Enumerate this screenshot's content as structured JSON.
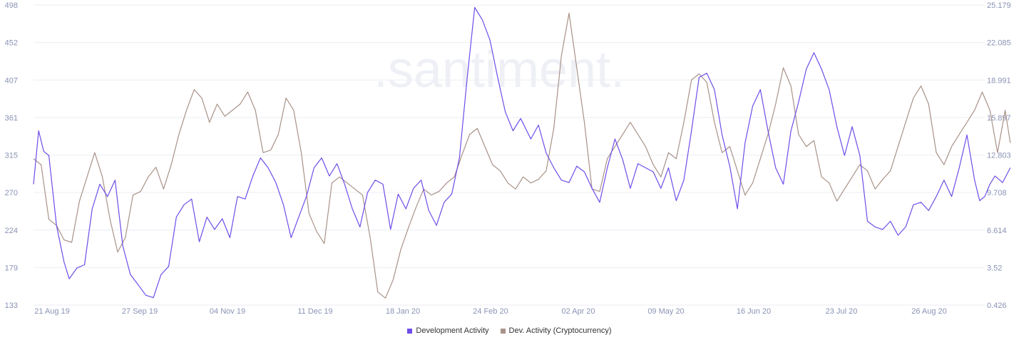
{
  "chart_data": {
    "type": "line",
    "x_ticks": [
      "21 Aug 19",
      "27 Sep 19",
      "04 Nov 19",
      "11 Dec 19",
      "18 Jan 20",
      "24 Feb 20",
      "02 Apr 20",
      "09 May 20",
      "16 Jun 20",
      "23 Jul 20",
      "26 Aug 20"
    ],
    "x_range": [
      "2019-08-19",
      "2020-08-26"
    ],
    "y_left_ticks": [
      "133",
      "179",
      "224",
      "270",
      "315",
      "361",
      "407",
      "452",
      "498"
    ],
    "y_left_range": [
      133,
      498
    ],
    "y_right_ticks": [
      "0.426",
      "3.52",
      "6.614",
      "9.708",
      "12.803",
      "15.897",
      "18.991",
      "22.085",
      "25.179"
    ],
    "y_right_range": [
      0.426,
      25.179
    ],
    "watermark": ".santiment.",
    "grid": "horizontal",
    "legend_position": "bottom-center",
    "series": [
      {
        "name": "Development Activity",
        "axis": "left",
        "color": "#6f4de8",
        "points": [
          [
            "2019-08-19",
            280
          ],
          [
            "2019-08-21",
            345
          ],
          [
            "2019-08-23",
            320
          ],
          [
            "2019-08-25",
            315
          ],
          [
            "2019-08-28",
            230
          ],
          [
            "2019-08-31",
            185
          ],
          [
            "2019-09-02",
            165
          ],
          [
            "2019-09-05",
            178
          ],
          [
            "2019-09-08",
            182
          ],
          [
            "2019-09-11",
            250
          ],
          [
            "2019-09-14",
            280
          ],
          [
            "2019-09-17",
            265
          ],
          [
            "2019-09-20",
            285
          ],
          [
            "2019-09-23",
            205
          ],
          [
            "2019-09-26",
            170
          ],
          [
            "2019-09-29",
            158
          ],
          [
            "2019-10-02",
            145
          ],
          [
            "2019-10-05",
            142
          ],
          [
            "2019-10-08",
            170
          ],
          [
            "2019-10-11",
            180
          ],
          [
            "2019-10-14",
            240
          ],
          [
            "2019-10-17",
            255
          ],
          [
            "2019-10-20",
            262
          ],
          [
            "2019-10-23",
            210
          ],
          [
            "2019-10-26",
            240
          ],
          [
            "2019-10-29",
            225
          ],
          [
            "2019-11-01",
            238
          ],
          [
            "2019-11-04",
            215
          ],
          [
            "2019-11-07",
            265
          ],
          [
            "2019-11-10",
            262
          ],
          [
            "2019-11-13",
            290
          ],
          [
            "2019-11-16",
            312
          ],
          [
            "2019-11-19",
            300
          ],
          [
            "2019-11-22",
            282
          ],
          [
            "2019-11-25",
            255
          ],
          [
            "2019-11-28",
            215
          ],
          [
            "2019-12-01",
            240
          ],
          [
            "2019-12-04",
            265
          ],
          [
            "2019-12-07",
            300
          ],
          [
            "2019-12-10",
            312
          ],
          [
            "2019-12-13",
            290
          ],
          [
            "2019-12-16",
            305
          ],
          [
            "2019-12-19",
            280
          ],
          [
            "2019-12-22",
            250
          ],
          [
            "2019-12-25",
            228
          ],
          [
            "2019-12-28",
            270
          ],
          [
            "2019-12-31",
            285
          ],
          [
            "2020-01-03",
            280
          ],
          [
            "2020-01-06",
            225
          ],
          [
            "2020-01-09",
            268
          ],
          [
            "2020-01-12",
            250
          ],
          [
            "2020-01-15",
            275
          ],
          [
            "2020-01-18",
            285
          ],
          [
            "2020-01-21",
            248
          ],
          [
            "2020-01-24",
            230
          ],
          [
            "2020-01-27",
            258
          ],
          [
            "2020-01-30",
            268
          ],
          [
            "2020-02-02",
            312
          ],
          [
            "2020-02-05",
            408
          ],
          [
            "2020-02-08",
            495
          ],
          [
            "2020-02-11",
            480
          ],
          [
            "2020-02-14",
            455
          ],
          [
            "2020-02-17",
            410
          ],
          [
            "2020-02-20",
            368
          ],
          [
            "2020-02-23",
            345
          ],
          [
            "2020-02-26",
            360
          ],
          [
            "2020-03-01",
            335
          ],
          [
            "2020-03-04",
            352
          ],
          [
            "2020-03-07",
            318
          ],
          [
            "2020-03-10",
            300
          ],
          [
            "2020-03-13",
            285
          ],
          [
            "2020-03-16",
            282
          ],
          [
            "2020-03-19",
            302
          ],
          [
            "2020-03-22",
            295
          ],
          [
            "2020-03-25",
            275
          ],
          [
            "2020-03-28",
            258
          ],
          [
            "2020-03-31",
            300
          ],
          [
            "2020-04-03",
            335
          ],
          [
            "2020-04-06",
            310
          ],
          [
            "2020-04-09",
            275
          ],
          [
            "2020-04-12",
            305
          ],
          [
            "2020-04-15",
            300
          ],
          [
            "2020-04-18",
            295
          ],
          [
            "2020-04-21",
            275
          ],
          [
            "2020-04-24",
            300
          ],
          [
            "2020-04-27",
            260
          ],
          [
            "2020-04-30",
            285
          ],
          [
            "2020-05-03",
            345
          ],
          [
            "2020-05-06",
            410
          ],
          [
            "2020-05-09",
            415
          ],
          [
            "2020-05-12",
            395
          ],
          [
            "2020-05-15",
            340
          ],
          [
            "2020-05-18",
            302
          ],
          [
            "2020-05-21",
            250
          ],
          [
            "2020-05-24",
            330
          ],
          [
            "2020-05-27",
            375
          ],
          [
            "2020-05-30",
            395
          ],
          [
            "2020-06-02",
            345
          ],
          [
            "2020-06-05",
            300
          ],
          [
            "2020-06-08",
            280
          ],
          [
            "2020-06-11",
            345
          ],
          [
            "2020-06-14",
            380
          ],
          [
            "2020-06-17",
            420
          ],
          [
            "2020-06-20",
            440
          ],
          [
            "2020-06-23",
            420
          ],
          [
            "2020-06-26",
            395
          ],
          [
            "2020-06-29",
            350
          ],
          [
            "2020-07-02",
            315
          ],
          [
            "2020-07-05",
            350
          ],
          [
            "2020-07-08",
            315
          ],
          [
            "2020-07-11",
            235
          ],
          [
            "2020-07-14",
            228
          ],
          [
            "2020-07-17",
            225
          ],
          [
            "2020-07-20",
            235
          ],
          [
            "2020-07-23",
            218
          ],
          [
            "2020-07-26",
            228
          ],
          [
            "2020-07-29",
            255
          ],
          [
            "2020-08-01",
            258
          ],
          [
            "2020-08-04",
            248
          ],
          [
            "2020-08-07",
            265
          ],
          [
            "2020-08-10",
            285
          ],
          [
            "2020-08-13",
            265
          ],
          [
            "2020-08-16",
            300
          ],
          [
            "2020-08-19",
            340
          ],
          [
            "2020-08-22",
            285
          ],
          [
            "2020-08-24",
            260
          ],
          [
            "2020-08-26",
            265
          ],
          [
            "2020-08-28",
            280
          ],
          [
            "2020-08-30",
            290
          ],
          [
            "2020-09-02",
            282
          ],
          [
            "2020-09-05",
            300
          ]
        ]
      },
      {
        "name": "Dev. Activity (Cryptocurrency)",
        "axis": "right",
        "color": "#a89288",
        "points": [
          [
            "2019-08-19",
            12.5
          ],
          [
            "2019-08-22",
            12.0
          ],
          [
            "2019-08-25",
            7.5
          ],
          [
            "2019-08-28",
            7.0
          ],
          [
            "2019-08-31",
            5.8
          ],
          [
            "2019-09-03",
            5.6
          ],
          [
            "2019-09-06",
            9.0
          ],
          [
            "2019-09-09",
            11.0
          ],
          [
            "2019-09-12",
            13.0
          ],
          [
            "2019-09-15",
            11.0
          ],
          [
            "2019-09-18",
            7.5
          ],
          [
            "2019-09-21",
            4.8
          ],
          [
            "2019-09-24",
            6.0
          ],
          [
            "2019-09-27",
            9.5
          ],
          [
            "2019-09-30",
            9.8
          ],
          [
            "2019-10-03",
            11.0
          ],
          [
            "2019-10-06",
            11.8
          ],
          [
            "2019-10-09",
            10.0
          ],
          [
            "2019-10-12",
            12.0
          ],
          [
            "2019-10-15",
            14.5
          ],
          [
            "2019-10-18",
            16.5
          ],
          [
            "2019-10-21",
            18.2
          ],
          [
            "2019-10-24",
            17.5
          ],
          [
            "2019-10-27",
            15.5
          ],
          [
            "2019-10-30",
            17.0
          ],
          [
            "2019-11-02",
            16.0
          ],
          [
            "2019-11-05",
            16.5
          ],
          [
            "2019-11-08",
            17.0
          ],
          [
            "2019-11-11",
            18.0
          ],
          [
            "2019-11-14",
            16.5
          ],
          [
            "2019-11-17",
            13.0
          ],
          [
            "2019-11-20",
            13.2
          ],
          [
            "2019-11-23",
            14.5
          ],
          [
            "2019-11-26",
            17.5
          ],
          [
            "2019-11-29",
            16.5
          ],
          [
            "2019-12-02",
            13.0
          ],
          [
            "2019-12-05",
            8.0
          ],
          [
            "2019-12-08",
            6.5
          ],
          [
            "2019-12-11",
            5.5
          ],
          [
            "2019-12-14",
            10.5
          ],
          [
            "2019-12-17",
            11.0
          ],
          [
            "2019-12-20",
            10.5
          ],
          [
            "2019-12-23",
            10.0
          ],
          [
            "2019-12-26",
            9.5
          ],
          [
            "2019-12-29",
            6.0
          ],
          [
            "2020-01-01",
            1.5
          ],
          [
            "2020-01-04",
            1.0
          ],
          [
            "2020-01-07",
            2.5
          ],
          [
            "2020-01-10",
            5.0
          ],
          [
            "2020-01-13",
            6.8
          ],
          [
            "2020-01-16",
            8.5
          ],
          [
            "2020-01-19",
            10.0
          ],
          [
            "2020-01-22",
            9.5
          ],
          [
            "2020-01-25",
            9.8
          ],
          [
            "2020-01-28",
            10.5
          ],
          [
            "2020-01-31",
            11.0
          ],
          [
            "2020-02-03",
            12.8
          ],
          [
            "2020-02-06",
            14.5
          ],
          [
            "2020-02-09",
            15.0
          ],
          [
            "2020-02-12",
            13.5
          ],
          [
            "2020-02-15",
            12.0
          ],
          [
            "2020-02-18",
            11.5
          ],
          [
            "2020-02-21",
            10.5
          ],
          [
            "2020-02-24",
            10.0
          ],
          [
            "2020-02-27",
            11.0
          ],
          [
            "2020-03-01",
            10.5
          ],
          [
            "2020-03-04",
            10.8
          ],
          [
            "2020-03-07",
            11.5
          ],
          [
            "2020-03-10",
            15.0
          ],
          [
            "2020-03-13",
            21.0
          ],
          [
            "2020-03-16",
            24.5
          ],
          [
            "2020-03-19",
            20.0
          ],
          [
            "2020-03-22",
            15.5
          ],
          [
            "2020-03-25",
            10.0
          ],
          [
            "2020-03-28",
            9.8
          ],
          [
            "2020-03-31",
            12.5
          ],
          [
            "2020-04-03",
            13.5
          ],
          [
            "2020-04-06",
            14.5
          ],
          [
            "2020-04-09",
            15.5
          ],
          [
            "2020-04-12",
            14.5
          ],
          [
            "2020-04-15",
            13.5
          ],
          [
            "2020-04-18",
            12.0
          ],
          [
            "2020-04-21",
            11.0
          ],
          [
            "2020-04-24",
            13.0
          ],
          [
            "2020-04-27",
            12.5
          ],
          [
            "2020-04-30",
            15.5
          ],
          [
            "2020-05-03",
            19.0
          ],
          [
            "2020-05-06",
            19.5
          ],
          [
            "2020-05-09",
            18.8
          ],
          [
            "2020-05-12",
            15.5
          ],
          [
            "2020-05-15",
            13.0
          ],
          [
            "2020-05-18",
            13.5
          ],
          [
            "2020-05-21",
            11.5
          ],
          [
            "2020-05-24",
            9.5
          ],
          [
            "2020-05-27",
            10.5
          ],
          [
            "2020-05-30",
            12.5
          ],
          [
            "2020-06-02",
            14.5
          ],
          [
            "2020-06-05",
            17.0
          ],
          [
            "2020-06-08",
            20.0
          ],
          [
            "2020-06-11",
            18.5
          ],
          [
            "2020-06-14",
            14.5
          ],
          [
            "2020-06-17",
            13.5
          ],
          [
            "2020-06-20",
            14.0
          ],
          [
            "2020-06-23",
            11.0
          ],
          [
            "2020-06-26",
            10.5
          ],
          [
            "2020-06-29",
            9.0
          ],
          [
            "2020-07-02",
            10.0
          ],
          [
            "2020-07-05",
            11.0
          ],
          [
            "2020-07-08",
            12.0
          ],
          [
            "2020-07-11",
            11.5
          ],
          [
            "2020-07-14",
            10.0
          ],
          [
            "2020-07-17",
            10.8
          ],
          [
            "2020-07-20",
            11.5
          ],
          [
            "2020-07-23",
            13.5
          ],
          [
            "2020-07-26",
            15.5
          ],
          [
            "2020-07-29",
            17.5
          ],
          [
            "2020-08-01",
            18.5
          ],
          [
            "2020-08-04",
            17.0
          ],
          [
            "2020-08-07",
            13.0
          ],
          [
            "2020-08-10",
            12.0
          ],
          [
            "2020-08-13",
            13.5
          ],
          [
            "2020-08-16",
            14.5
          ],
          [
            "2020-08-19",
            15.5
          ],
          [
            "2020-08-22",
            16.5
          ],
          [
            "2020-08-25",
            18.0
          ],
          [
            "2020-08-28",
            16.5
          ],
          [
            "2020-08-31",
            13.0
          ],
          [
            "2020-09-03",
            16.5
          ],
          [
            "2020-09-05",
            13.8
          ]
        ]
      }
    ]
  }
}
